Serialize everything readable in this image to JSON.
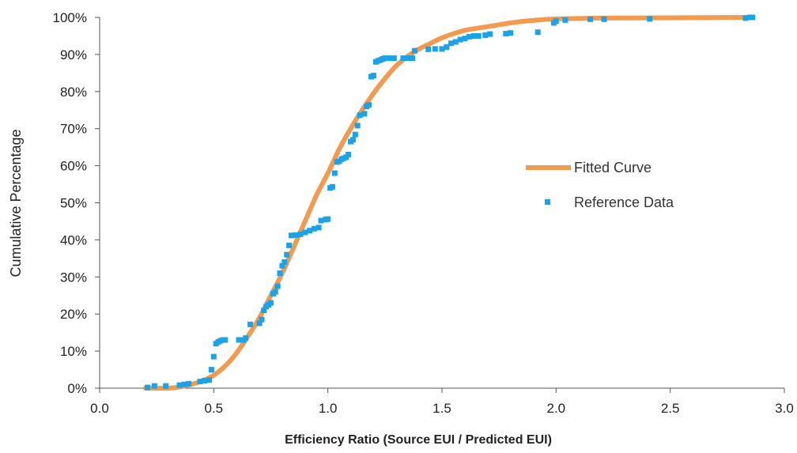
{
  "chart_data": {
    "type": "scatter",
    "xlabel": "Efficiency Ratio (Source EUI / Predicted EUI)",
    "ylabel": "Cumulative Percentage",
    "xlim": [
      0.0,
      3.0
    ],
    "ylim": [
      0,
      100
    ],
    "x_ticks": [
      "0.0",
      "0.5",
      "1.0",
      "1.5",
      "2.0",
      "2.5",
      "3.0"
    ],
    "x_tick_values": [
      0.0,
      0.5,
      1.0,
      1.5,
      2.0,
      2.5,
      3.0
    ],
    "y_ticks": [
      "0%",
      "10%",
      "20%",
      "30%",
      "40%",
      "50%",
      "60%",
      "70%",
      "80%",
      "90%",
      "100%"
    ],
    "y_tick_values": [
      0,
      10,
      20,
      30,
      40,
      50,
      60,
      70,
      80,
      90,
      100
    ],
    "grid": false,
    "legend_position": "right-center",
    "colors": {
      "fitted": "#f39a4f",
      "reference": "#1aa3e8",
      "axis": "#555555"
    },
    "series": [
      {
        "name": "Fitted Curve",
        "kind": "line",
        "x": [
          0.2,
          0.3,
          0.35,
          0.4,
          0.45,
          0.5,
          0.55,
          0.6,
          0.65,
          0.7,
          0.75,
          0.8,
          0.85,
          0.9,
          0.95,
          1.0,
          1.05,
          1.1,
          1.15,
          1.2,
          1.25,
          1.3,
          1.35,
          1.4,
          1.45,
          1.5,
          1.6,
          1.7,
          1.8,
          1.9,
          2.0,
          2.2,
          2.5,
          2.86
        ],
        "y": [
          0,
          0,
          0.3,
          1,
          2,
          3.5,
          6,
          9.5,
          14,
          19,
          25,
          31,
          38,
          45,
          52,
          58,
          64.5,
          70,
          75,
          79.5,
          83.5,
          87,
          89.5,
          91.5,
          93,
          94.5,
          96.5,
          97.5,
          98.5,
          99.2,
          99.6,
          99.8,
          99.9,
          100
        ]
      },
      {
        "name": "Reference Data",
        "kind": "scatter",
        "x": [
          0.21,
          0.24,
          0.29,
          0.35,
          0.37,
          0.39,
          0.44,
          0.46,
          0.48,
          0.49,
          0.5,
          0.51,
          0.52,
          0.53,
          0.54,
          0.55,
          0.61,
          0.63,
          0.64,
          0.66,
          0.7,
          0.71,
          0.72,
          0.73,
          0.74,
          0.75,
          0.76,
          0.77,
          0.78,
          0.79,
          0.8,
          0.81,
          0.82,
          0.83,
          0.84,
          0.86,
          0.88,
          0.9,
          0.92,
          0.94,
          0.96,
          0.97,
          0.99,
          1.0,
          1.01,
          1.02,
          1.03,
          1.04,
          1.05,
          1.06,
          1.07,
          1.08,
          1.09,
          1.1,
          1.11,
          1.12,
          1.13,
          1.14,
          1.16,
          1.17,
          1.18,
          1.19,
          1.2,
          1.21,
          1.22,
          1.23,
          1.24,
          1.25,
          1.27,
          1.29,
          1.33,
          1.35,
          1.37,
          1.38,
          1.44,
          1.47,
          1.5,
          1.52,
          1.54,
          1.56,
          1.58,
          1.6,
          1.62,
          1.64,
          1.66,
          1.69,
          1.71,
          1.78,
          1.8,
          1.92,
          1.99,
          2.0,
          2.04,
          2.15,
          2.21,
          2.41,
          2.83,
          2.85,
          2.86
        ],
        "y": [
          0.2,
          0.6,
          0.6,
          0.8,
          1.0,
          1.2,
          1.8,
          2.0,
          2.2,
          5.0,
          8.5,
          12,
          12.5,
          12.8,
          13,
          13,
          13,
          13,
          13.5,
          17.2,
          17.5,
          18.5,
          21,
          22,
          22.5,
          23,
          25.5,
          26,
          27.5,
          31,
          33,
          34,
          36,
          38.5,
          41.2,
          41.3,
          41.5,
          42,
          42.5,
          43,
          43.3,
          45.2,
          45.5,
          45.6,
          54,
          54.3,
          58,
          61,
          61.2,
          61.8,
          62,
          62.3,
          63,
          66.5,
          67,
          68.4,
          70.8,
          73.6,
          74,
          76,
          76.4,
          84,
          84.3,
          88,
          88.3,
          88.5,
          88.8,
          89,
          89,
          89,
          89,
          89,
          89,
          91,
          91.4,
          91.5,
          91.5,
          92,
          93,
          93.4,
          94,
          94.3,
          94.8,
          95,
          95,
          95.2,
          95.5,
          95.6,
          95.8,
          96,
          98.5,
          99,
          99.3,
          99.5,
          99.5,
          99.6,
          99.8,
          100,
          100
        ]
      }
    ]
  }
}
